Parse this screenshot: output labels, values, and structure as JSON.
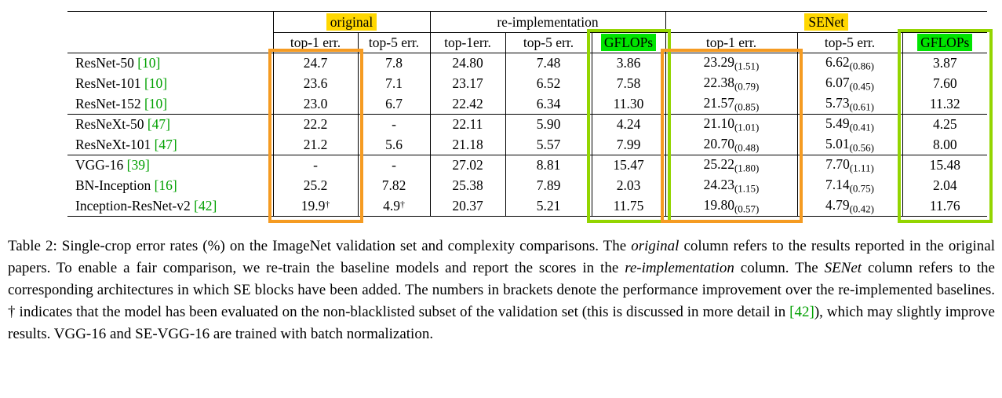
{
  "colors": {
    "highlight_yellow": "#ffd700",
    "highlight_green": "#00e400",
    "box_orange": "#f59b22",
    "box_green": "#93d500",
    "cite_green": "#00a000",
    "rule": "#000000",
    "text": "#000000"
  },
  "table": {
    "group_headers": [
      {
        "label": "original",
        "highlight": "yellow"
      },
      {
        "label": "re-implementation",
        "highlight": "none"
      },
      {
        "label": "SENet",
        "highlight": "yellow"
      }
    ],
    "col_headers": [
      "top-1 err.",
      "top-5 err.",
      "top-1err.",
      "top-5 err.",
      "GFLOPs",
      "top-1 err.",
      "top-5 err.",
      "GFLOPs"
    ],
    "rows": [
      {
        "model": "ResNet-50",
        "cite": "[10]",
        "o_top1": "24.7",
        "o_top5": "7.8",
        "r_top1": "24.80",
        "r_top5": "7.48",
        "r_gflops": "3.86",
        "s_top1": "23.29",
        "s_top1_sub": "(1.51)",
        "s_top5": "6.62",
        "s_top5_sub": "(0.86)",
        "s_gflops": "3.87"
      },
      {
        "model": "ResNet-101",
        "cite": "[10]",
        "o_top1": "23.6",
        "o_top5": "7.1",
        "r_top1": "23.17",
        "r_top5": "6.52",
        "r_gflops": "7.58",
        "s_top1": "22.38",
        "s_top1_sub": "(0.79)",
        "s_top5": "6.07",
        "s_top5_sub": "(0.45)",
        "s_gflops": "7.60"
      },
      {
        "model": "ResNet-152",
        "cite": "[10]",
        "o_top1": "23.0",
        "o_top5": "6.7",
        "r_top1": "22.42",
        "r_top5": "6.34",
        "r_gflops": "11.30",
        "s_top1": "21.57",
        "s_top1_sub": "(0.85)",
        "s_top5": "5.73",
        "s_top5_sub": "(0.61)",
        "s_gflops": "11.32"
      },
      {
        "model": "ResNeXt-50",
        "cite": "[47]",
        "o_top1": "22.2",
        "o_top5": "-",
        "r_top1": "22.11",
        "r_top5": "5.90",
        "r_gflops": "4.24",
        "s_top1": "21.10",
        "s_top1_sub": "(1.01)",
        "s_top5": "5.49",
        "s_top5_sub": "(0.41)",
        "s_gflops": "4.25"
      },
      {
        "model": "ResNeXt-101",
        "cite": "[47]",
        "o_top1": "21.2",
        "o_top5": "5.6",
        "r_top1": "21.18",
        "r_top5": "5.57",
        "r_gflops": "7.99",
        "s_top1": "20.70",
        "s_top1_sub": "(0.48)",
        "s_top5": "5.01",
        "s_top5_sub": "(0.56)",
        "s_gflops": "8.00"
      },
      {
        "model": "VGG-16",
        "cite": "[39]",
        "o_top1": "-",
        "o_top5": "-",
        "r_top1": "27.02",
        "r_top5": "8.81",
        "r_gflops": "15.47",
        "s_top1": "25.22",
        "s_top1_sub": "(1.80)",
        "s_top5": "7.70",
        "s_top5_sub": "(1.11)",
        "s_gflops": "15.48"
      },
      {
        "model": "BN-Inception",
        "cite": "[16]",
        "o_top1": "25.2",
        "o_top5": "7.82",
        "r_top1": "25.38",
        "r_top5": "7.89",
        "r_gflops": "2.03",
        "s_top1": "24.23",
        "s_top1_sub": "(1.15)",
        "s_top5": "7.14",
        "s_top5_sub": "(0.75)",
        "s_gflops": "2.04"
      },
      {
        "model": "Inception-ResNet-v2",
        "cite": "[42]",
        "o_top1": "19.9",
        "o_top1_sup": "†",
        "o_top5": "4.9",
        "o_top5_sup": "†",
        "r_top1": "20.37",
        "r_top5": "5.21",
        "r_gflops": "11.75",
        "s_top1": "19.80",
        "s_top1_sub": "(0.57)",
        "s_top5": "4.79",
        "s_top5_sub": "(0.42)",
        "s_gflops": "11.76"
      }
    ]
  },
  "caption": {
    "segments": [
      {
        "text": "Table 2: Single-crop error rates (%) on the ImageNet validation set and complexity comparisons. The ",
        "style": "normal"
      },
      {
        "text": "original",
        "style": "italic"
      },
      {
        "text": " column refers to the results reported in the original papers. To enable a fair comparison, we re-train the baseline models and report the scores in the ",
        "style": "normal"
      },
      {
        "text": "re-implementation",
        "style": "italic"
      },
      {
        "text": " column. The ",
        "style": "normal"
      },
      {
        "text": "SENet",
        "style": "italic"
      },
      {
        "text": " column refers to the corresponding architectures in which SE blocks have been added. The numbers in brackets denote the performance improvement over the re-implemented baselines. † indicates that the model has been evaluated on the non-blacklisted subset of the validation set (this is discussed in more detail in ",
        "style": "normal"
      },
      {
        "text": "[42]",
        "style": "cite"
      },
      {
        "text": "), which may slightly improve results. VGG-16 and SE-VGG-16 are trained with batch normalization.",
        "style": "normal"
      }
    ]
  }
}
